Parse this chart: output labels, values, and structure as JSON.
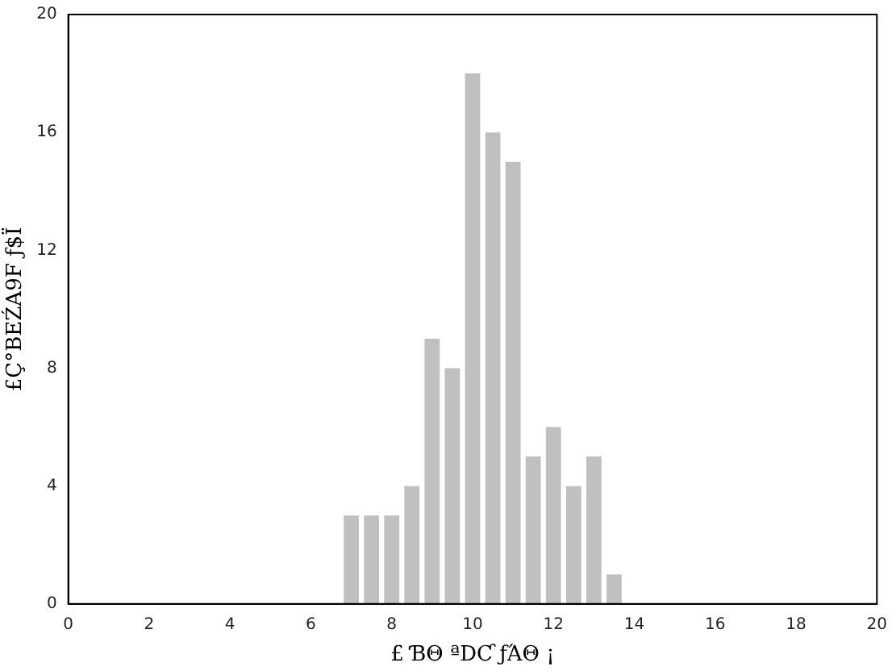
{
  "chart_data": {
    "type": "histogram",
    "xlabel": "£ ƁΘ ªDƇ ƒΆΘ ¡",
    "ylabel": "£Ç°BEŹA9F ƒ$Ï",
    "bins": [
      6.75,
      7.25,
      7.75,
      8.25,
      8.75,
      9.25,
      9.75,
      10.25,
      10.75,
      11.25,
      11.75,
      12.25,
      12.75,
      13.25,
      13.75
    ],
    "values": [
      3,
      3,
      3,
      4,
      9,
      8,
      18,
      16,
      15,
      5,
      6,
      4,
      5,
      1
    ],
    "color": "#c0c0c0",
    "xlim": [
      0,
      20
    ],
    "xticks": [
      0,
      2,
      4,
      6,
      8,
      10,
      12,
      14,
      16,
      18,
      20
    ],
    "ylim": [
      0,
      20
    ],
    "yticks": [
      0,
      4,
      8,
      12,
      16,
      20
    ],
    "grid": false,
    "legend": false
  }
}
